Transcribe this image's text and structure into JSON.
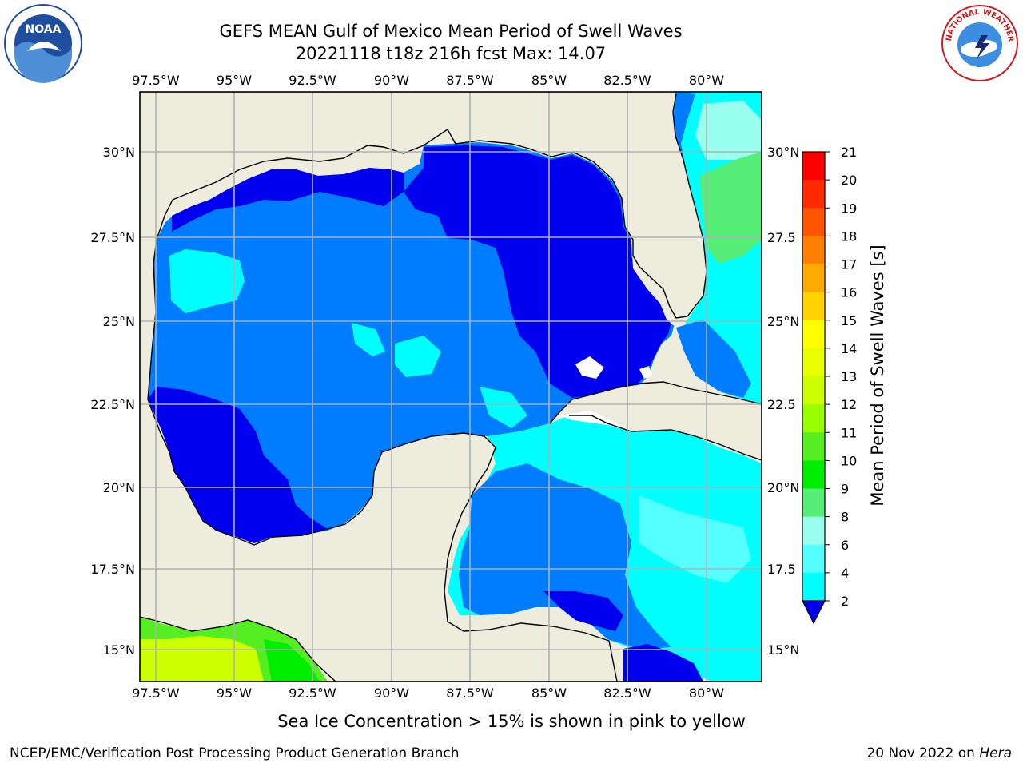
{
  "title": {
    "line1": "GEFS MEAN Gulf of Mexico Mean Period of Swell Waves",
    "line2": "20221118 t18z 216h fcst   Max: 14.07"
  },
  "map": {
    "lon_ticks": [
      "97.5°W",
      "95°W",
      "92.5°W",
      "90°W",
      "87.5°W",
      "85°W",
      "82.5°W",
      "80°W"
    ],
    "lat_ticks": [
      "30°N",
      "27.5°N",
      "25°N",
      "22.5°N",
      "20°N",
      "17.5°N",
      "15°N"
    ],
    "right_lat_ticks": [
      "30°N",
      "27.5",
      "25°N",
      "22.5",
      "20°N",
      "17.5",
      "15°N"
    ],
    "land_color": "#eeecdc",
    "grid": true
  },
  "colorbar": {
    "title": "Mean Period of Swell Waves [s]",
    "levels": [
      "21",
      "20",
      "19",
      "18",
      "17",
      "16",
      "15",
      "14",
      "13",
      "12",
      "11",
      "10",
      "9",
      "8",
      "6",
      "4",
      "2"
    ],
    "colors_top_to_bottom": [
      "#ff0000",
      "#ff2a00",
      "#ff5500",
      "#ff8000",
      "#ffaa00",
      "#ffd200",
      "#ffff00",
      "#eaff00",
      "#ccff00",
      "#99ff00",
      "#55ee22",
      "#00ee00",
      "#55ee77",
      "#99ffee",
      "#55ffff",
      "#00ffff",
      "#007cff"
    ],
    "extend_color": "#0000ee"
  },
  "footer": {
    "caption": "Sea Ice Concentration > 15% is shown in pink to yellow",
    "left": "NCEP/EMC/Verification Post Processing Product Generation Branch",
    "right_prefix": "20 Nov 2022 on ",
    "right_host": "Hera"
  },
  "logos": {
    "noaa": "NOAA",
    "nws": "NATIONAL WEATHER SERVICE"
  }
}
